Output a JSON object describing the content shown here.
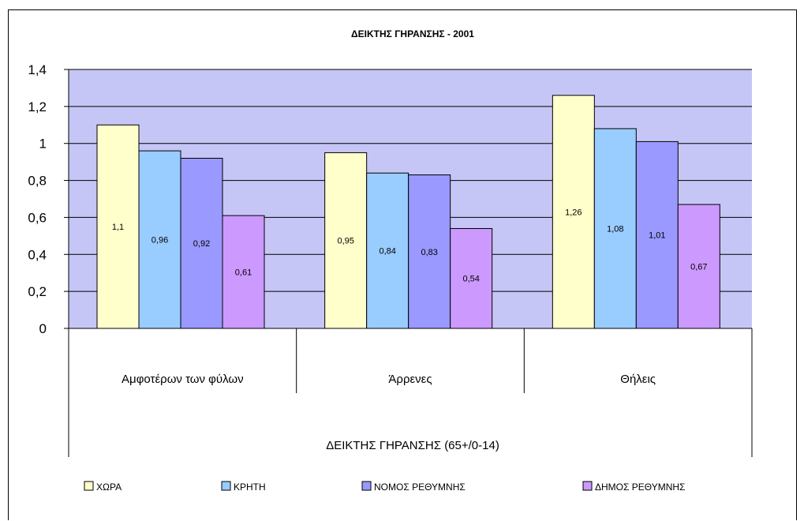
{
  "chart_data": {
    "type": "bar",
    "title": "ΔΕΙΚΤΗΣ ΓΗΡΑΝΣΗΣ - 2001",
    "xlabel": "ΔΕΙΚΤΗΣ ΓΗΡΑΝΣΗΣ (65+/0-14)",
    "ylabel": "",
    "categories": [
      "Αμφοτέρων των φύλων",
      "Άρρενες",
      "Θήλεις"
    ],
    "ylim": [
      0,
      1.4
    ],
    "yticks": [
      "0",
      "0,2",
      "0,4",
      "0,6",
      "0,8",
      "1",
      "1,2",
      "1,4"
    ],
    "grid": true,
    "legend_position": "bottom",
    "plot_background": "#c6c6f6",
    "series": [
      {
        "name": "ΧΩΡΑ",
        "color": "#ffffcc",
        "values": [
          1.1,
          0.95,
          1.26
        ],
        "labels": [
          "1,1",
          "0,95",
          "1,26"
        ]
      },
      {
        "name": "ΚΡΗΤΗ",
        "color": "#99ccff",
        "values": [
          0.96,
          0.84,
          1.08
        ],
        "labels": [
          "0,96",
          "0,84",
          "1,08"
        ]
      },
      {
        "name": "ΝΟΜΟΣ ΡΕΘΥΜΝΗΣ",
        "color": "#9999ff",
        "values": [
          0.92,
          0.83,
          1.01
        ],
        "labels": [
          "0,92",
          "0,83",
          "1,01"
        ]
      },
      {
        "name": "ΔΗΜΟΣ ΡΕΘΥΜΝΗΣ",
        "color": "#cc99ff",
        "values": [
          0.61,
          0.54,
          0.67
        ],
        "labels": [
          "0,61",
          "0,54",
          "0,67"
        ]
      }
    ]
  }
}
